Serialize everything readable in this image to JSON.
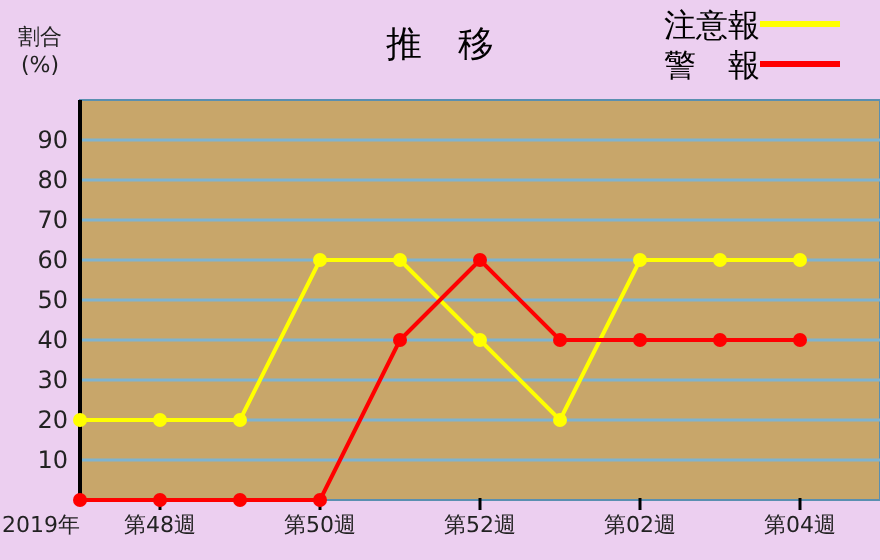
{
  "chart_data": {
    "type": "line",
    "title": "推　移",
    "ylabel": "割合\n(%)",
    "annotations": [
      "2019年"
    ],
    "categories": [
      null,
      "第48週",
      null,
      "第50週",
      null,
      "第52週",
      null,
      "第02週",
      null,
      "第04週"
    ],
    "series": [
      {
        "name": "注意報",
        "color": "#ffff00",
        "values": [
          20,
          20,
          20,
          60,
          60,
          40,
          20,
          60,
          60,
          60
        ]
      },
      {
        "name": "警　報",
        "color": "#ff0000",
        "values": [
          0,
          0,
          0,
          0,
          40,
          60,
          40,
          40,
          40,
          40
        ]
      }
    ],
    "ylim": [
      0,
      100
    ],
    "yticks": [
      10,
      20,
      30,
      40,
      50,
      60,
      70,
      80,
      90
    ],
    "grid": "y",
    "legend": "top right",
    "marker": "circle",
    "line_style": "solid"
  }
}
